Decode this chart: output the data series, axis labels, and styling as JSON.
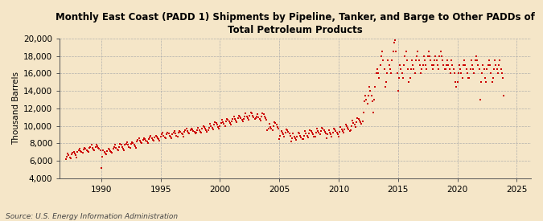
{
  "title": "Monthly East Coast (PADD 1) Shipments by Pipeline, Tanker, and Barge to Other PADDs of\nTotal Petroleum Products",
  "ylabel": "Thousand Barrels",
  "source": "Source: U.S. Energy Information Administration",
  "background_color": "#f5e6c8",
  "plot_bg_color": "#f5e6c8",
  "dot_color": "#cc0000",
  "ylim": [
    4000,
    20000
  ],
  "yticks": [
    4000,
    6000,
    8000,
    10000,
    12000,
    14000,
    16000,
    18000,
    20000
  ],
  "xlim_start": 1986.5,
  "xlim_end": 2026.2,
  "xticks": [
    1990,
    1995,
    2000,
    2005,
    2010,
    2015,
    2020,
    2025
  ],
  "start_year": 1987,
  "start_month": 1,
  "values": [
    6200,
    6500,
    6800,
    6600,
    6400,
    6300,
    6700,
    6900,
    7000,
    6800,
    6600,
    6400,
    7000,
    7200,
    7400,
    7100,
    7000,
    6900,
    7300,
    7500,
    7400,
    7200,
    7100,
    7000,
    7500,
    7600,
    7800,
    7500,
    7300,
    7200,
    7600,
    7800,
    7700,
    7500,
    7400,
    7200,
    5200,
    6500,
    7200,
    7000,
    6800,
    6700,
    7100,
    7400,
    7300,
    7100,
    7000,
    6900,
    7400,
    7600,
    7800,
    7500,
    7300,
    7200,
    7600,
    7900,
    7800,
    7600,
    7400,
    7200,
    7800,
    7900,
    8100,
    7800,
    7600,
    7500,
    7900,
    8100,
    8000,
    7800,
    7700,
    7500,
    8200,
    8400,
    8600,
    8300,
    8100,
    8000,
    8400,
    8600,
    8500,
    8300,
    8200,
    8000,
    8500,
    8700,
    8900,
    8600,
    8400,
    8300,
    8700,
    8900,
    8800,
    8600,
    8500,
    8300,
    8800,
    9000,
    9200,
    8900,
    8700,
    8600,
    9000,
    9200,
    9100,
    8900,
    8800,
    8600,
    9000,
    9200,
    9400,
    9100,
    8900,
    8800,
    9200,
    9400,
    9300,
    9100,
    9000,
    8800,
    9300,
    9500,
    9700,
    9400,
    9200,
    9100,
    9500,
    9700,
    9600,
    9400,
    9300,
    9100,
    9200,
    9500,
    9800,
    9500,
    9300,
    9200,
    9700,
    10000,
    9900,
    9700,
    9500,
    9300,
    9500,
    9800,
    10200,
    10000,
    9800,
    9600,
    10100,
    10400,
    10300,
    10100,
    9900,
    9700,
    10000,
    10300,
    10700,
    10400,
    10200,
    10000,
    10500,
    10800,
    10700,
    10500,
    10300,
    10100,
    10500,
    10800,
    11100,
    10800,
    10600,
    10400,
    10900,
    11200,
    11100,
    10900,
    10700,
    10500,
    10800,
    11100,
    11400,
    11100,
    10900,
    10700,
    11200,
    11500,
    11400,
    11200,
    11000,
    10800,
    10900,
    11100,
    11300,
    11000,
    10800,
    10600,
    11100,
    11400,
    11300,
    11100,
    10900,
    10700,
    9500,
    9700,
    10200,
    9900,
    9700,
    9500,
    10000,
    10400,
    10300,
    10100,
    9900,
    9700,
    8500,
    8900,
    9400,
    9200,
    9000,
    8800,
    9200,
    9600,
    9500,
    9300,
    9100,
    8900,
    8200,
    8600,
    9100,
    8800,
    8600,
    8400,
    8800,
    9200,
    9100,
    8900,
    8700,
    8500,
    8500,
    8900,
    9400,
    9100,
    8900,
    8700,
    9100,
    9500,
    9400,
    9200,
    9000,
    8800,
    8800,
    9200,
    9700,
    9400,
    9200,
    9000,
    9400,
    9800,
    9700,
    9500,
    9300,
    9100,
    8600,
    9000,
    9500,
    9200,
    9000,
    8800,
    9200,
    9700,
    9600,
    9400,
    9200,
    9000,
    8800,
    9300,
    9900,
    9600,
    9400,
    9200,
    9600,
    10100,
    10000,
    9800,
    9600,
    9400,
    9500,
    10000,
    10600,
    10300,
    10100,
    9900,
    10400,
    10900,
    10800,
    10600,
    10400,
    10200,
    10500,
    11500,
    12800,
    13500,
    13000,
    12500,
    13500,
    14500,
    14000,
    13500,
    12800,
    11500,
    13000,
    14500,
    16000,
    16500,
    16000,
    15500,
    17000,
    18000,
    18500,
    17500,
    16500,
    14500,
    15000,
    16000,
    17500,
    17000,
    16500,
    16000,
    17500,
    18500,
    19500,
    19800,
    18500,
    16000,
    14000,
    15500,
    17000,
    16500,
    16000,
    15500,
    17000,
    18000,
    18500,
    17500,
    16500,
    15000,
    15500,
    16500,
    17500,
    17000,
    16500,
    16000,
    17500,
    18000,
    18500,
    17500,
    17000,
    16000,
    16500,
    17000,
    18000,
    17500,
    17000,
    16500,
    18000,
    18500,
    18000,
    17500,
    17000,
    16500,
    17000,
    17500,
    18000,
    17500,
    17000,
    16500,
    18000,
    18500,
    18000,
    17500,
    17000,
    16500,
    16500,
    17000,
    17500,
    17000,
    16500,
    16000,
    17500,
    17000,
    16500,
    16000,
    15000,
    14500,
    15000,
    16000,
    17000,
    16500,
    16000,
    15500,
    17000,
    17500,
    17000,
    16500,
    16000,
    15500,
    15500,
    16500,
    17500,
    17000,
    16500,
    16000,
    17500,
    18000,
    17500,
    17000,
    16500,
    13000,
    15000,
    16000,
    17000,
    16500,
    15500,
    15000,
    16500,
    17000,
    17500,
    17000,
    16000,
    15000,
    15500,
    16500,
    17500,
    17000,
    16500,
    16000,
    17000,
    17500,
    16500,
    16000,
    15500,
    13500
  ]
}
